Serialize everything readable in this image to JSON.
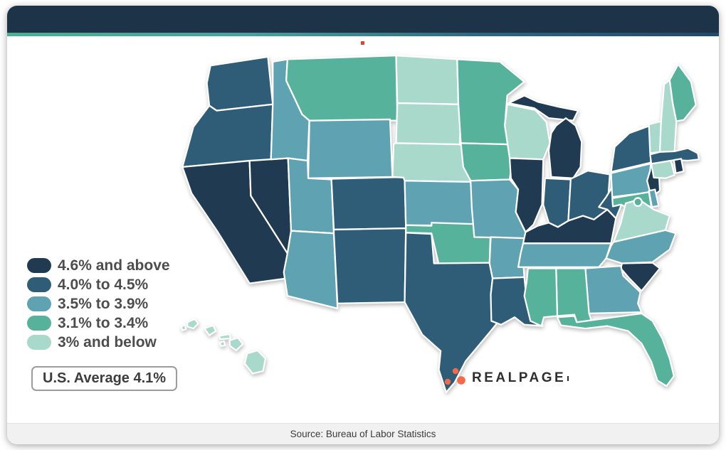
{
  "theme": {
    "topbar_color": "#1d3347",
    "accent_gradient": [
      "#4cb092",
      "#49a2a0",
      "#2d6880",
      "#24496a"
    ],
    "card_bg": "#ffffff",
    "footer_bg": "#f1f1f1"
  },
  "legend": {
    "items": [
      {
        "label": "4.6% and above",
        "color": "#203a52"
      },
      {
        "label": "4.0% to 4.5%",
        "color": "#2f5d77"
      },
      {
        "label": "3.5% to 3.9%",
        "color": "#5fa2b1"
      },
      {
        "label": "3.1% to 3.4%",
        "color": "#57b29b"
      },
      {
        "label": "3% and below",
        "color": "#a8d9cb"
      }
    ],
    "average_label": "U.S. Average 4.1%"
  },
  "branding": {
    "name": "REALPAGE",
    "dot_color": "#f2694c",
    "text_color": "#2e2e2e"
  },
  "footer": {
    "source_text": "Source: Bureau of Labor Statistics"
  },
  "chart_data": {
    "type": "choropleth",
    "region": "United States",
    "us_average": "4.1%",
    "legend_position": "left",
    "bins": [
      {
        "label": "4.6% and above",
        "color": "#203a52"
      },
      {
        "label": "4.0% to 4.5%",
        "color": "#2f5d77"
      },
      {
        "label": "3.5% to 3.9%",
        "color": "#5fa2b1"
      },
      {
        "label": "3.1% to 3.4%",
        "color": "#57b29b"
      },
      {
        "label": "3% and below",
        "color": "#a8d9cb"
      }
    ],
    "state_bins": {
      "CA": "4.6% and above",
      "NV": "4.6% and above",
      "MI": "4.6% and above",
      "IL": "4.6% and above",
      "KY": "4.6% and above",
      "SC": "4.6% and above",
      "NJ": "4.6% and above",
      "RI": "4.6% and above",
      "WA": "4.0% to 4.5%",
      "OR": "4.0% to 4.5%",
      "CO": "4.0% to 4.5%",
      "NM": "4.0% to 4.5%",
      "TX": "4.0% to 4.5%",
      "LA": "4.0% to 4.5%",
      "IN": "4.0% to 4.5%",
      "OH": "4.0% to 4.5%",
      "WV": "4.0% to 4.5%",
      "NY": "4.0% to 4.5%",
      "MA": "4.0% to 4.5%",
      "ID": "3.5% to 3.9%",
      "WY": "3.5% to 3.9%",
      "UT": "3.5% to 3.9%",
      "AZ": "3.5% to 3.9%",
      "KS": "3.5% to 3.9%",
      "MO": "3.5% to 3.9%",
      "AR": "3.5% to 3.9%",
      "TN": "3.5% to 3.9%",
      "NC": "3.5% to 3.9%",
      "GA": "3.5% to 3.9%",
      "PA": "3.5% to 3.9%",
      "DE": "3.5% to 3.9%",
      "MT": "3.1% to 3.4%",
      "MN": "3.1% to 3.4%",
      "IA": "3.1% to 3.4%",
      "OK": "3.1% to 3.4%",
      "MS": "3.1% to 3.4%",
      "AL": "3.1% to 3.4%",
      "FL": "3.1% to 3.4%",
      "ME": "3.1% to 3.4%",
      "MD": "3.1% to 3.4%",
      "DC": "3.1% to 3.4%",
      "ND": "3% and below",
      "SD": "3% and below",
      "NE": "3% and below",
      "WI": "3% and below",
      "VA": "3% and below",
      "VT": "3% and below",
      "NH": "3% and below",
      "CT": "3% and below",
      "HI": "3% and below"
    }
  }
}
